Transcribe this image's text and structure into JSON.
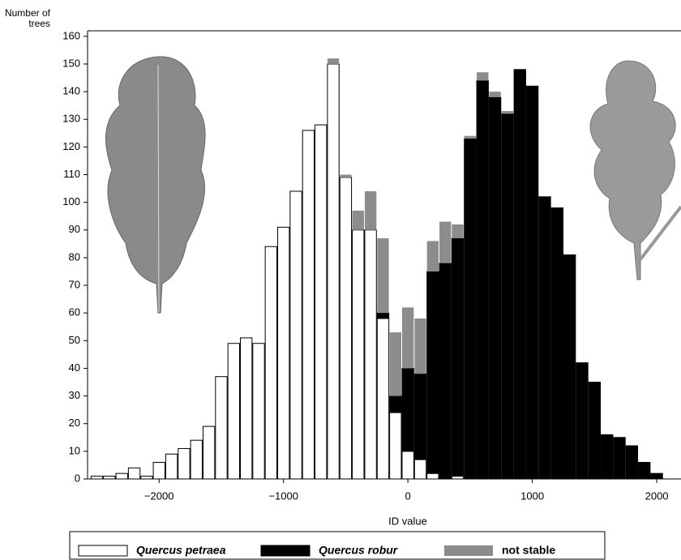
{
  "chart_data": {
    "type": "histogram",
    "ylabel": "Number of trees",
    "xlabel": "ID value",
    "bins": [
      -2550,
      -2450,
      -2350,
      -2250,
      -2150,
      -2050,
      -1950,
      -1850,
      -1750,
      -1650,
      -1550,
      -1450,
      -1350,
      -1250,
      -1150,
      -1050,
      -950,
      -850,
      -750,
      -650,
      -550,
      -450,
      -350,
      -250,
      -150,
      -50,
      50,
      150,
      250,
      350,
      450,
      550,
      650,
      750,
      850,
      950,
      1050,
      1150,
      1250,
      1350,
      1450,
      1550,
      1650,
      1750,
      1850,
      1950,
      2050
    ],
    "series": [
      {
        "name": "Quercus petraea",
        "color": "#ffffff",
        "values": [
          1,
          1,
          2,
          4,
          1,
          6,
          9,
          11,
          14,
          19,
          37,
          49,
          51,
          49,
          84,
          91,
          104,
          126,
          128,
          150,
          109,
          90,
          90,
          58,
          24,
          10,
          7,
          2,
          0,
          1,
          0,
          0,
          0,
          0,
          0,
          0,
          0,
          0,
          0,
          0,
          0,
          0,
          0,
          0,
          0,
          0
        ]
      },
      {
        "name": "Quercus robur",
        "color": "#000000",
        "values": [
          0,
          0,
          0,
          0,
          0,
          0,
          0,
          0,
          0,
          0,
          0,
          0,
          0,
          0,
          0,
          0,
          0,
          0,
          0,
          0,
          0,
          0,
          0,
          2,
          6,
          30,
          31,
          73,
          78,
          86,
          123,
          144,
          138,
          132,
          148,
          142,
          102,
          98,
          81,
          42,
          35,
          16,
          15,
          12,
          6,
          2
        ]
      },
      {
        "name": "not stable",
        "color": "#8c8c8c",
        "values": [
          0,
          0,
          0,
          0,
          0,
          0,
          0,
          0,
          0,
          0,
          0,
          0,
          0,
          0,
          0,
          0,
          0,
          0,
          0,
          2,
          1,
          7,
          14,
          27,
          23,
          22,
          20,
          11,
          15,
          5,
          1,
          3,
          2,
          1,
          0,
          0,
          0,
          0,
          0,
          0,
          0,
          0,
          0,
          0,
          0,
          0
        ]
      }
    ],
    "xlim": [
      -2575,
      2195
    ],
    "ylim": [
      0,
      162
    ],
    "xticks": [
      {
        "value": -2000,
        "label": "−2000"
      },
      {
        "value": -1000,
        "label": "−1000"
      },
      0,
      1000,
      2000
    ],
    "yticks": [
      0,
      10,
      20,
      30,
      40,
      50,
      60,
      70,
      80,
      90,
      100,
      110,
      120,
      130,
      140,
      150,
      160
    ]
  }
}
